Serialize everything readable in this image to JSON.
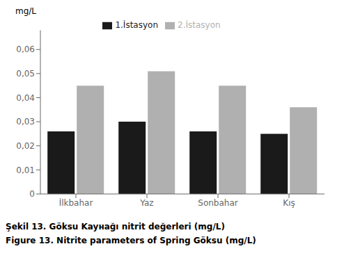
{
  "chart_data": {
    "type": "bar",
    "categories": [
      "İlkbahar",
      "Yaz",
      "Sonbahar",
      "Kış"
    ],
    "series": [
      {
        "name": "1.İstasyon",
        "color": "#1a1a1a",
        "values": [
          0.026,
          0.03,
          0.026,
          0.025
        ]
      },
      {
        "name": "2.İstasyon",
        "color": "#b0b0b0",
        "values": [
          0.045,
          0.051,
          0.045,
          0.036
        ]
      }
    ],
    "ylabel": "mg/L",
    "ylim": [
      0,
      0.068
    ],
    "yticks": [
      0,
      {
        "value": 0.01,
        "label": "0,01"
      },
      {
        "value": 0.02,
        "label": "0,02"
      },
      {
        "value": 0.03,
        "label": "0,03"
      },
      {
        "value": 0.04,
        "label": "0,04"
      },
      {
        "value": 0.05,
        "label": "0,05"
      },
      {
        "value": 0.06,
        "label": "0,06"
      }
    ],
    "grid": false,
    "legend": "top",
    "annotations": [
      "Şekil 13. Göksu Kayнağı nitrit değerleri (mg/L)",
      "Figure 13. Nitrite parameters of Spring Göksu (mg/L)"
    ]
  }
}
